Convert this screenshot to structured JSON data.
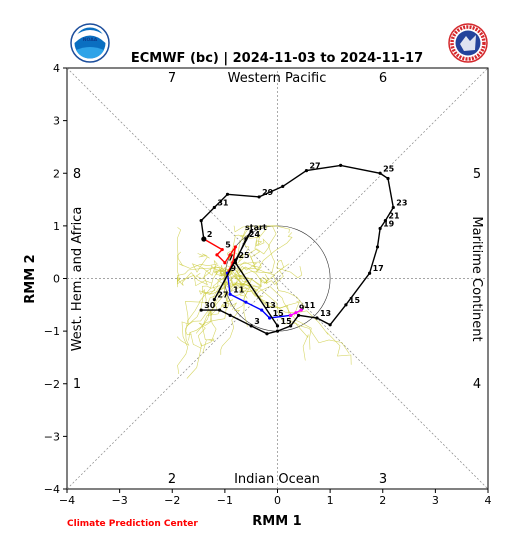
{
  "chart_data": {
    "type": "line",
    "title": "ECMWF (bc) | 2024-11-03 to 2024-11-17",
    "xlabel": "RMM 1",
    "ylabel": "RMM 2",
    "xlim": [
      -4,
      4
    ],
    "ylim": [
      -4,
      4
    ],
    "xticks": [
      "−4",
      "−3",
      "−2",
      "−1",
      "0",
      "1",
      "2",
      "3",
      "4"
    ],
    "yticks": [
      "−4",
      "−3",
      "−2",
      "−1",
      "0",
      "1",
      "2",
      "3",
      "4"
    ],
    "phase_labels": [
      "1",
      "2",
      "3",
      "4",
      "5",
      "6",
      "7",
      "8"
    ],
    "region_labels": {
      "top": "Western Pacific",
      "bottom": "Indian Ocean",
      "left": "West. Hem. and Africa",
      "right": "Maritime Continent"
    },
    "start_label": "start",
    "series": [
      {
        "segment": "observed-oct",
        "color": "#000000",
        "points": [
          [
            -1.45,
            -0.6,
            "30"
          ],
          [
            -1.1,
            -0.6,
            "1"
          ],
          [
            -0.9,
            -0.7,
            ""
          ],
          [
            -0.5,
            -0.9,
            "3"
          ],
          [
            -0.2,
            -1.05,
            ""
          ],
          [
            0.0,
            -1.0,
            ""
          ],
          [
            0.25,
            -0.9,
            ""
          ],
          [
            0.4,
            -0.7,
            ""
          ],
          [
            0.75,
            -0.75,
            "13"
          ],
          [
            1.0,
            -0.88,
            ""
          ],
          [
            1.3,
            -0.5,
            "15"
          ],
          [
            1.75,
            0.1,
            "17"
          ],
          [
            1.9,
            0.6,
            ""
          ],
          [
            1.95,
            0.95,
            "19"
          ],
          [
            2.05,
            1.1,
            "21"
          ],
          [
            2.2,
            1.35,
            "23"
          ],
          [
            2.1,
            1.9,
            ""
          ],
          [
            1.95,
            2.0,
            "25"
          ],
          [
            1.2,
            2.15,
            ""
          ],
          [
            0.55,
            2.05,
            "27"
          ],
          [
            0.1,
            1.75,
            ""
          ],
          [
            -0.35,
            1.55,
            "29"
          ],
          [
            -0.95,
            1.6,
            ""
          ],
          [
            -1.2,
            1.35,
            "31"
          ],
          [
            -1.45,
            1.1,
            ""
          ],
          [
            -1.4,
            0.75,
            "2"
          ]
        ]
      },
      {
        "segment": "observed-nov",
        "color": "#ff0000",
        "points": [
          [
            -1.4,
            0.75,
            ""
          ],
          [
            -1.05,
            0.55,
            "5"
          ],
          [
            -1.15,
            0.45,
            ""
          ],
          [
            -1.0,
            0.3,
            "7"
          ],
          [
            -0.9,
            0.45,
            ""
          ],
          [
            -0.8,
            0.6,
            ""
          ],
          [
            -0.85,
            0.3,
            ""
          ],
          [
            -0.95,
            0.1,
            "9"
          ]
        ]
      },
      {
        "segment": "forecast-mean",
        "color": "#0000ff",
        "points": [
          [
            -0.95,
            0.1,
            ""
          ],
          [
            -0.9,
            -0.3,
            "11"
          ],
          [
            -0.6,
            -0.45,
            ""
          ],
          [
            -0.3,
            -0.6,
            "13"
          ],
          [
            -0.15,
            -0.75,
            "15"
          ],
          [
            0.25,
            -0.7,
            ""
          ]
        ]
      },
      {
        "segment": "forecast-week2",
        "color": "#ff00ff",
        "points": [
          [
            0.25,
            -0.7,
            ""
          ],
          [
            0.35,
            -0.65,
            "9"
          ],
          [
            0.45,
            -0.6,
            "11"
          ]
        ]
      },
      {
        "segment": "forecast-late",
        "color": "#000000",
        "points": [
          [
            0.0,
            -0.9,
            "15"
          ],
          [
            -0.8,
            0.3,
            ""
          ],
          [
            -0.6,
            0.75,
            "24"
          ],
          [
            -0.5,
            0.9,
            ""
          ],
          [
            -1.2,
            -0.4,
            "27"
          ],
          [
            -0.8,
            0.35,
            "25"
          ]
        ]
      }
    ],
    "ensemble_color": "#c8c832",
    "legend": "none",
    "grid": false
  },
  "footer": "Climate Prediction Center",
  "logos": {
    "left": "noaa-logo",
    "right": "nws-logo",
    "right_text": "NATIONAL WEATHER SERVICE"
  }
}
